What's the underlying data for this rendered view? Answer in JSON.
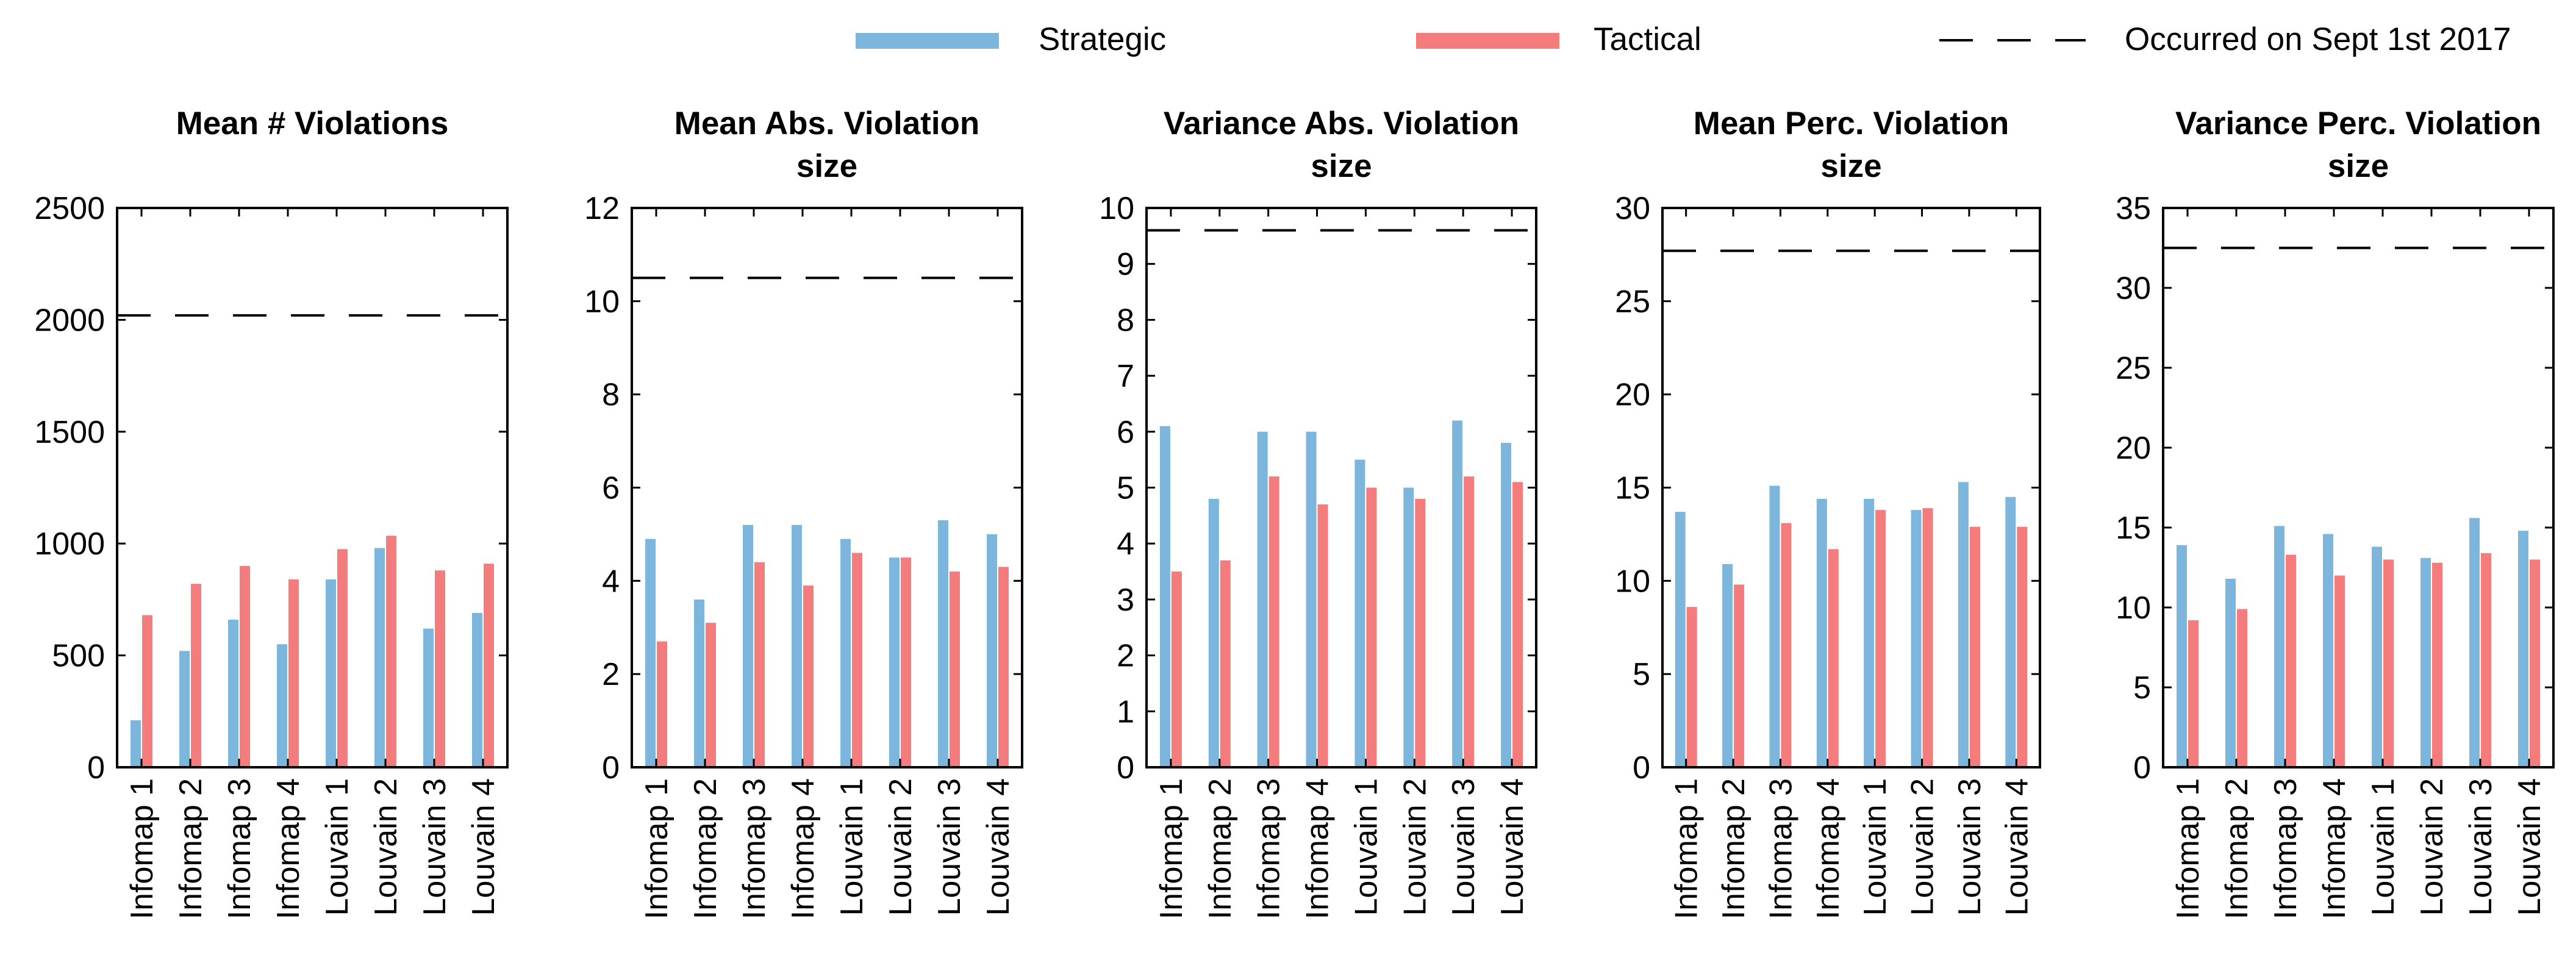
{
  "legend": {
    "strategic_label": "Strategic",
    "tactical_label": "Tactical",
    "reference_label": "Occurred on Sept 1st 2017"
  },
  "colors": {
    "strategic": "#7db6dd",
    "tactical": "#f47c7c",
    "reference": "#000000",
    "axis": "#000000"
  },
  "chart_data": [
    {
      "type": "bar",
      "title": "Mean # Violations",
      "categories": [
        "Infomap 1",
        "Infomap 2",
        "Infomap 3",
        "Infomap 4",
        "Louvain 1",
        "Louvain 2",
        "Louvain 3",
        "Louvain 4"
      ],
      "series": [
        {
          "name": "Strategic",
          "values": [
            210,
            520,
            660,
            550,
            840,
            980,
            620,
            690
          ]
        },
        {
          "name": "Tactical",
          "values": [
            680,
            820,
            900,
            840,
            975,
            1035,
            880,
            910
          ]
        }
      ],
      "reference_line": 2020,
      "ylim": [
        0,
        2500
      ],
      "yticks": [
        0,
        500,
        1000,
        1500,
        2000,
        2500
      ]
    },
    {
      "type": "bar",
      "title": "Mean Abs. Violation size",
      "categories": [
        "Infomap 1",
        "Infomap 2",
        "Infomap 3",
        "Infomap 4",
        "Louvain 1",
        "Louvain 2",
        "Louvain 3",
        "Louvain 4"
      ],
      "series": [
        {
          "name": "Strategic",
          "values": [
            4.9,
            3.6,
            5.2,
            5.2,
            4.9,
            4.5,
            5.3,
            5.0
          ]
        },
        {
          "name": "Tactical",
          "values": [
            2.7,
            3.1,
            4.4,
            3.9,
            4.6,
            4.5,
            4.2,
            4.3
          ]
        }
      ],
      "reference_line": 10.5,
      "ylim": [
        0,
        12
      ],
      "yticks": [
        0,
        2,
        4,
        6,
        8,
        10,
        12
      ]
    },
    {
      "type": "bar",
      "title": "Variance Abs. Violation size",
      "categories": [
        "Infomap 1",
        "Infomap 2",
        "Infomap 3",
        "Infomap 4",
        "Louvain 1",
        "Louvain 2",
        "Louvain 3",
        "Louvain 4"
      ],
      "series": [
        {
          "name": "Strategic",
          "values": [
            6.1,
            4.8,
            6.0,
            6.0,
            5.5,
            5.0,
            6.2,
            5.8
          ]
        },
        {
          "name": "Tactical",
          "values": [
            3.5,
            3.7,
            5.2,
            4.7,
            5.0,
            4.8,
            5.2,
            5.1
          ]
        }
      ],
      "reference_line": 9.6,
      "ylim": [
        0,
        10
      ],
      "yticks": [
        0,
        1,
        2,
        3,
        4,
        5,
        6,
        7,
        8,
        9,
        10
      ]
    },
    {
      "type": "bar",
      "title": "Mean Perc. Violation size",
      "categories": [
        "Infomap 1",
        "Infomap 2",
        "Infomap 3",
        "Infomap 4",
        "Louvain 1",
        "Louvain 2",
        "Louvain 3",
        "Louvain 4"
      ],
      "series": [
        {
          "name": "Strategic",
          "values": [
            13.7,
            10.9,
            15.1,
            14.4,
            14.4,
            13.8,
            15.3,
            14.5
          ]
        },
        {
          "name": "Tactical",
          "values": [
            8.6,
            9.8,
            13.1,
            11.7,
            13.8,
            13.9,
            12.9,
            12.9
          ]
        }
      ],
      "reference_line": 27.7,
      "ylim": [
        0,
        30
      ],
      "yticks": [
        0,
        5,
        10,
        15,
        20,
        25,
        30
      ]
    },
    {
      "type": "bar",
      "title": "Variance Perc. Violation size",
      "categories": [
        "Infomap 1",
        "Infomap 2",
        "Infomap 3",
        "Infomap 4",
        "Louvain 1",
        "Louvain 2",
        "Louvain 3",
        "Louvain 4"
      ],
      "series": [
        {
          "name": "Strategic",
          "values": [
            13.9,
            11.8,
            15.1,
            14.6,
            13.8,
            13.1,
            15.6,
            14.8
          ]
        },
        {
          "name": "Tactical",
          "values": [
            9.2,
            9.9,
            13.3,
            12.0,
            13.0,
            12.8,
            13.4,
            13.0
          ]
        }
      ],
      "reference_line": 32.5,
      "ylim": [
        0,
        35
      ],
      "yticks": [
        0,
        5,
        10,
        15,
        20,
        25,
        30,
        35
      ]
    }
  ]
}
